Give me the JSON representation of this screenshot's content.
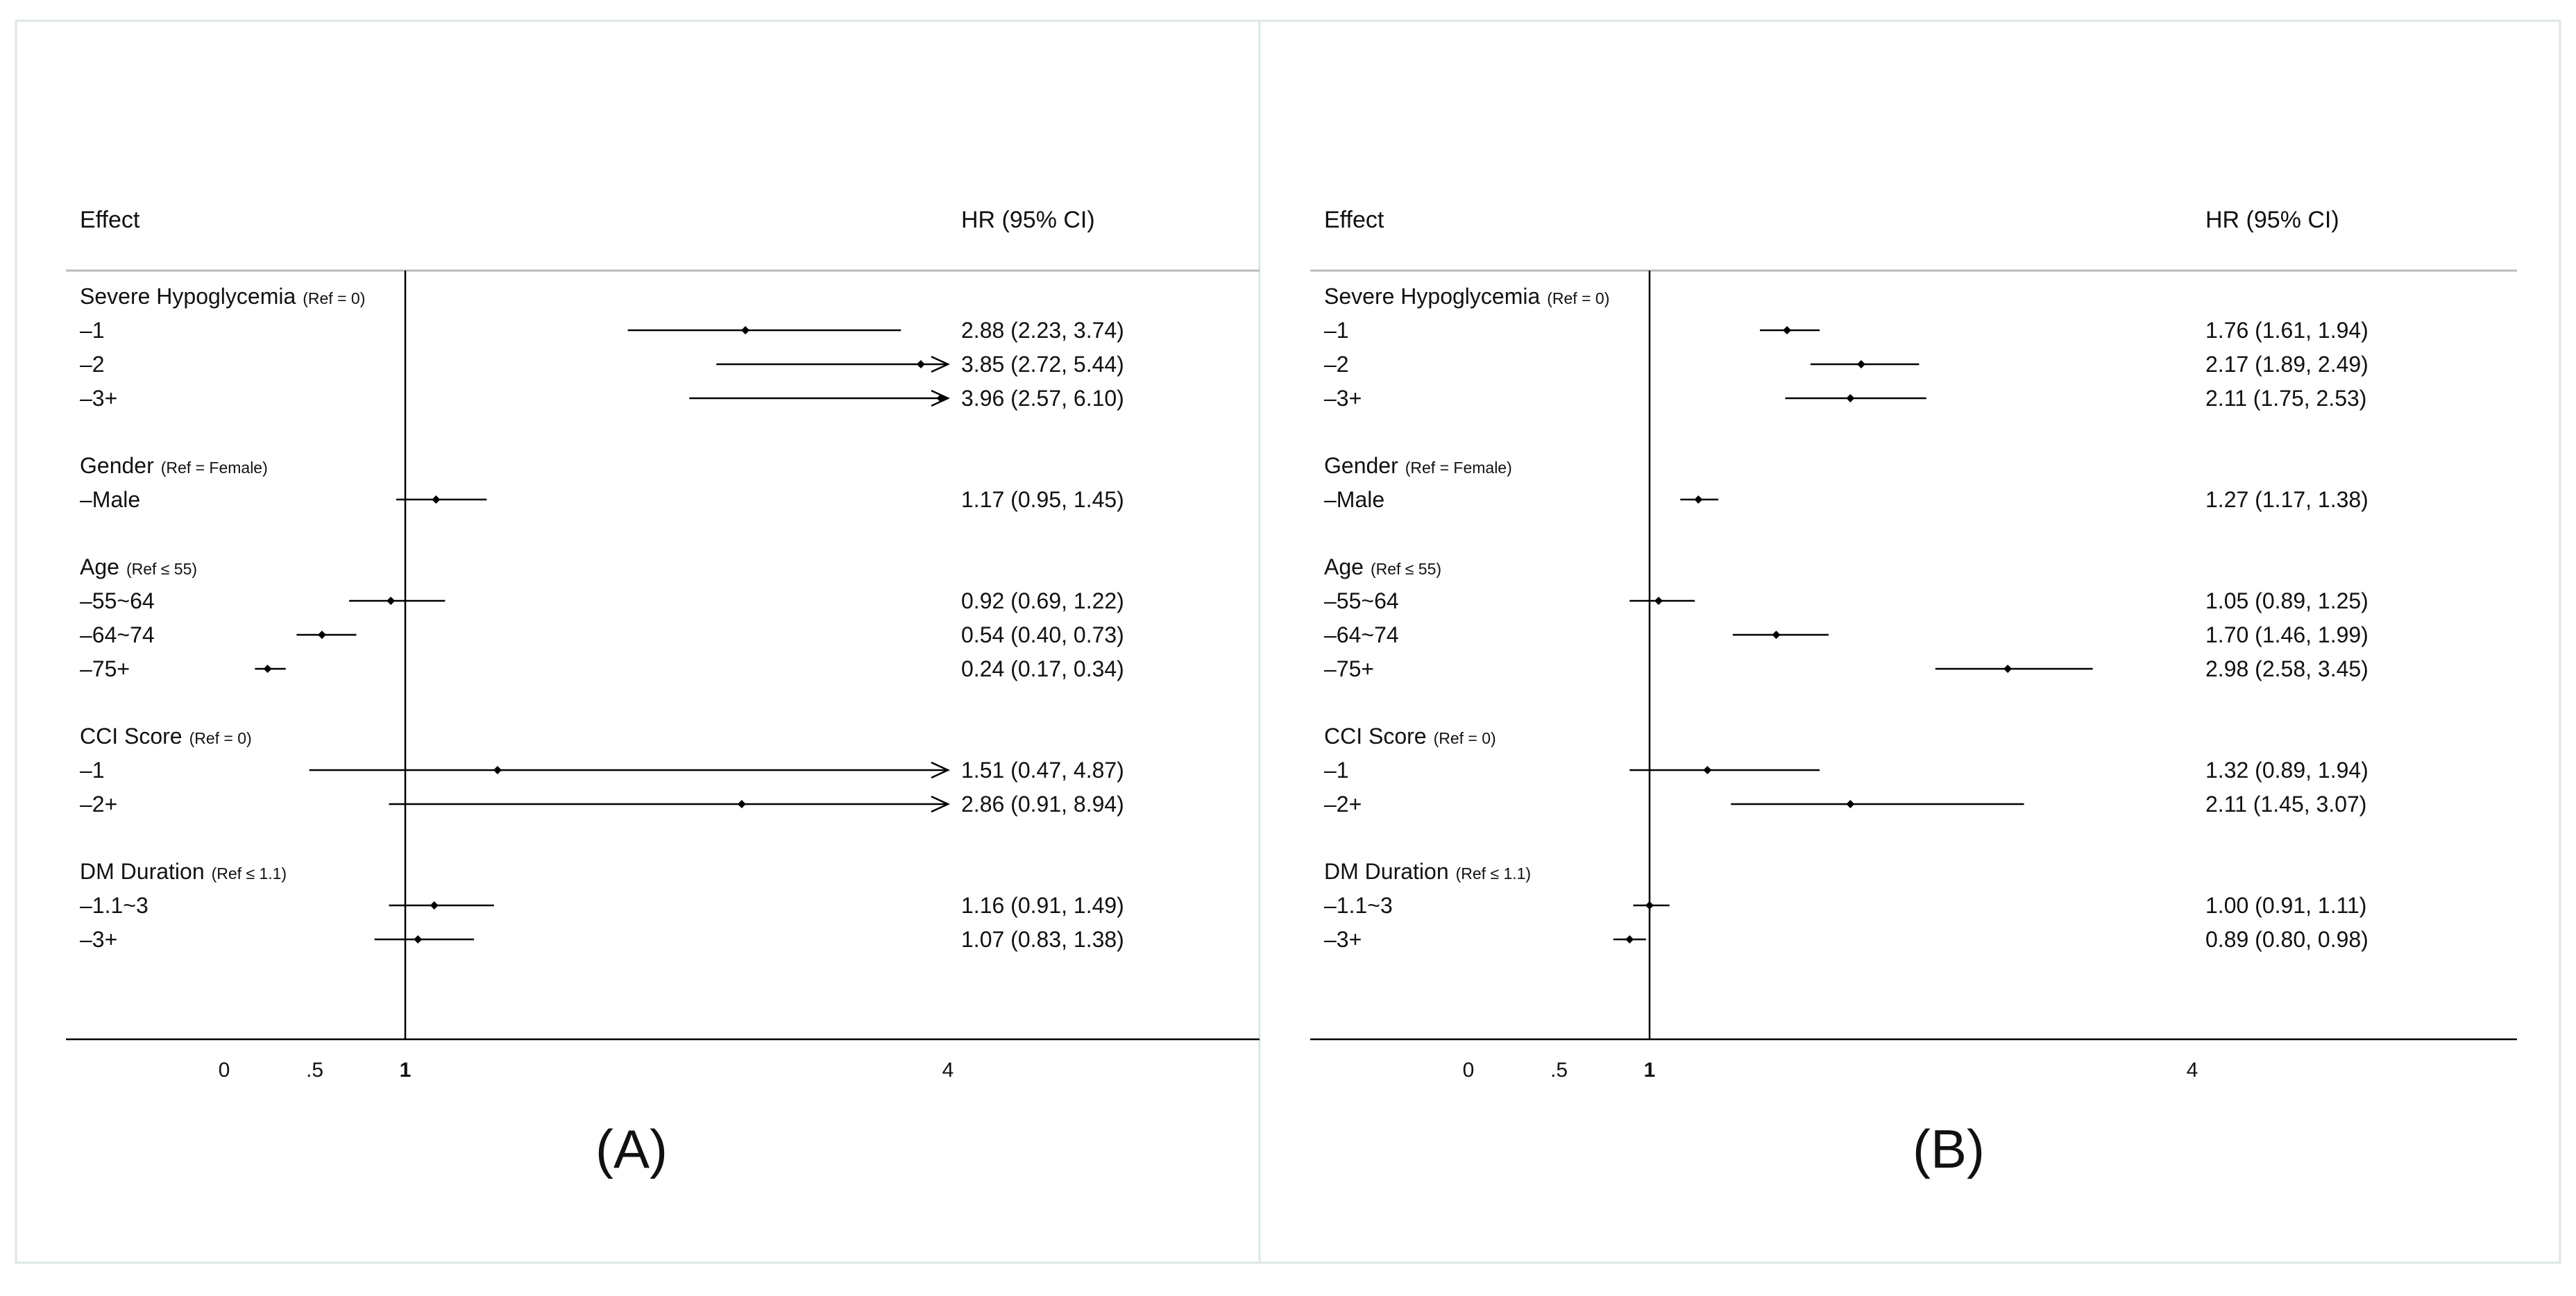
{
  "panel_labels": [
    "(A)",
    "(B)"
  ],
  "chart_data": [
    {
      "type": "forest",
      "panel_label": "(A)",
      "col_effect": "Effect",
      "col_hr": "HR (95% CI)",
      "axis_ticks": [
        "0",
        ".5",
        "1",
        "4"
      ],
      "groups": [
        {
          "label": "Severe Hypoglycemia",
          "ref": "(Ref = 0)",
          "rows": [
            {
              "label": "–1",
              "hr": 2.88,
              "lo": 2.23,
              "hi": 3.74,
              "text": "2.88 (2.23, 3.74)"
            },
            {
              "label": "–2",
              "hr": 3.85,
              "lo": 2.72,
              "hi": 5.44,
              "text": "3.85 (2.72, 5.44)",
              "arrow": true
            },
            {
              "label": "–3+",
              "hr": 3.96,
              "lo": 2.57,
              "hi": 6.1,
              "text": "3.96 (2.57, 6.10)",
              "arrow": true
            }
          ]
        },
        {
          "label": "Gender",
          "ref": "(Ref = Female)",
          "rows": [
            {
              "label": "–Male",
              "hr": 1.17,
              "lo": 0.95,
              "hi": 1.45,
              "text": "1.17 (0.95, 1.45)"
            }
          ]
        },
        {
          "label": "Age",
          "ref": "(Ref ≤ 55)",
          "rows": [
            {
              "label": "–55~64",
              "hr": 0.92,
              "lo": 0.69,
              "hi": 1.22,
              "text": "0.92 (0.69, 1.22)"
            },
            {
              "label": "–64~74",
              "hr": 0.54,
              "lo": 0.4,
              "hi": 0.73,
              "text": "0.54 (0.40, 0.73)"
            },
            {
              "label": "–75+",
              "hr": 0.24,
              "lo": 0.17,
              "hi": 0.34,
              "text": "0.24 (0.17, 0.34)"
            }
          ]
        },
        {
          "label": "CCI Score",
          "ref": "(Ref = 0)",
          "rows": [
            {
              "label": "–1",
              "hr": 1.51,
              "lo": 0.47,
              "hi": 4.87,
              "text": "1.51 (0.47, 4.87)",
              "arrow": true
            },
            {
              "label": "–2+",
              "hr": 2.86,
              "lo": 0.91,
              "hi": 8.94,
              "text": "2.86 (0.91, 8.94)",
              "arrow": true
            }
          ]
        },
        {
          "label": "DM Duration",
          "ref": "(Ref ≤ 1.1)",
          "rows": [
            {
              "label": "–1.1~3",
              "hr": 1.16,
              "lo": 0.91,
              "hi": 1.49,
              "text": "1.16 (0.91, 1.49)"
            },
            {
              "label": "–3+",
              "hr": 1.07,
              "lo": 0.83,
              "hi": 1.38,
              "text": "1.07 (0.83, 1.38)"
            }
          ]
        }
      ]
    },
    {
      "type": "forest",
      "panel_label": "(B)",
      "col_effect": "Effect",
      "col_hr": "HR (95% CI)",
      "axis_ticks": [
        "0",
        ".5",
        "1",
        "4"
      ],
      "groups": [
        {
          "label": "Severe Hypoglycemia",
          "ref": "(Ref = 0)",
          "rows": [
            {
              "label": "–1",
              "hr": 1.76,
              "lo": 1.61,
              "hi": 1.94,
              "text": "1.76 (1.61, 1.94)"
            },
            {
              "label": "–2",
              "hr": 2.17,
              "lo": 1.89,
              "hi": 2.49,
              "text": "2.17 (1.89, 2.49)"
            },
            {
              "label": "–3+",
              "hr": 2.11,
              "lo": 1.75,
              "hi": 2.53,
              "text": "2.11 (1.75, 2.53)"
            }
          ]
        },
        {
          "label": "Gender",
          "ref": "(Ref = Female)",
          "rows": [
            {
              "label": "–Male",
              "hr": 1.27,
              "lo": 1.17,
              "hi": 1.38,
              "text": "1.27 (1.17, 1.38)"
            }
          ]
        },
        {
          "label": "Age",
          "ref": "(Ref ≤ 55)",
          "rows": [
            {
              "label": "–55~64",
              "hr": 1.05,
              "lo": 0.89,
              "hi": 1.25,
              "text": "1.05 (0.89, 1.25)"
            },
            {
              "label": "–64~74",
              "hr": 1.7,
              "lo": 1.46,
              "hi": 1.99,
              "text": "1.70 (1.46, 1.99)"
            },
            {
              "label": "–75+",
              "hr": 2.98,
              "lo": 2.58,
              "hi": 3.45,
              "text": "2.98 (2.58, 3.45)"
            }
          ]
        },
        {
          "label": "CCI Score",
          "ref": "(Ref = 0)",
          "rows": [
            {
              "label": "–1",
              "hr": 1.32,
              "lo": 0.89,
              "hi": 1.94,
              "text": "1.32 (0.89, 1.94)"
            },
            {
              "label": "–2+",
              "hr": 2.11,
              "lo": 1.45,
              "hi": 3.07,
              "text": "2.11 (1.45, 3.07)"
            }
          ]
        },
        {
          "label": "DM Duration",
          "ref": "(Ref ≤ 1.1)",
          "rows": [
            {
              "label": "–1.1~3",
              "hr": 1.0,
              "lo": 0.91,
              "hi": 1.11,
              "text": "1.00 (0.91, 1.11)"
            },
            {
              "label": "–3+",
              "hr": 0.89,
              "lo": 0.8,
              "hi": 0.98,
              "text": "0.89 (0.80, 0.98)"
            }
          ]
        }
      ]
    }
  ]
}
